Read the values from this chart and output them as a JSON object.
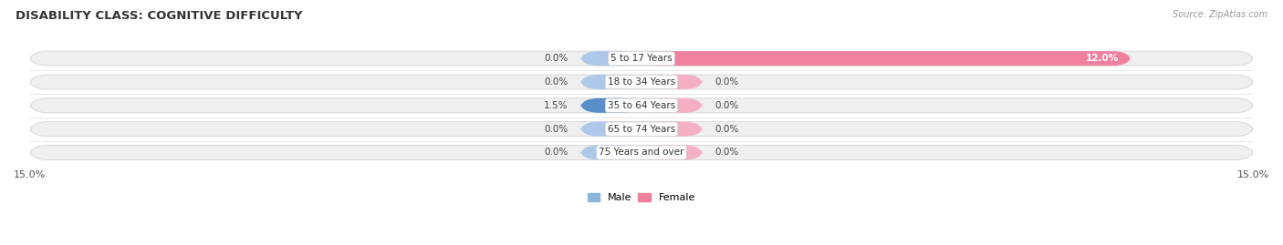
{
  "title": "DISABILITY CLASS: COGNITIVE DIFFICULTY",
  "source": "Source: ZipAtlas.com",
  "categories": [
    "5 to 17 Years",
    "18 to 34 Years",
    "35 to 64 Years",
    "65 to 74 Years",
    "75 Years and over"
  ],
  "male_values": [
    0.0,
    0.0,
    1.5,
    0.0,
    0.0
  ],
  "female_values": [
    12.0,
    0.0,
    0.0,
    0.0,
    0.0
  ],
  "male_color": "#8ab4d8",
  "female_color": "#f080a0",
  "male_light_color": "#adc8e8",
  "female_light_color": "#f4afc5",
  "male_dark_color": "#5a8ec8",
  "xlim": 15.0,
  "stub_size": 1.5,
  "bar_bg_color": "#efefef",
  "bar_bg_color2": "#e8e8e8",
  "bar_edge_color": "#d8d8d8",
  "background_color": "#ffffff",
  "title_fontsize": 9.5,
  "label_fontsize": 7.5,
  "tick_fontsize": 8,
  "bar_height": 0.62
}
